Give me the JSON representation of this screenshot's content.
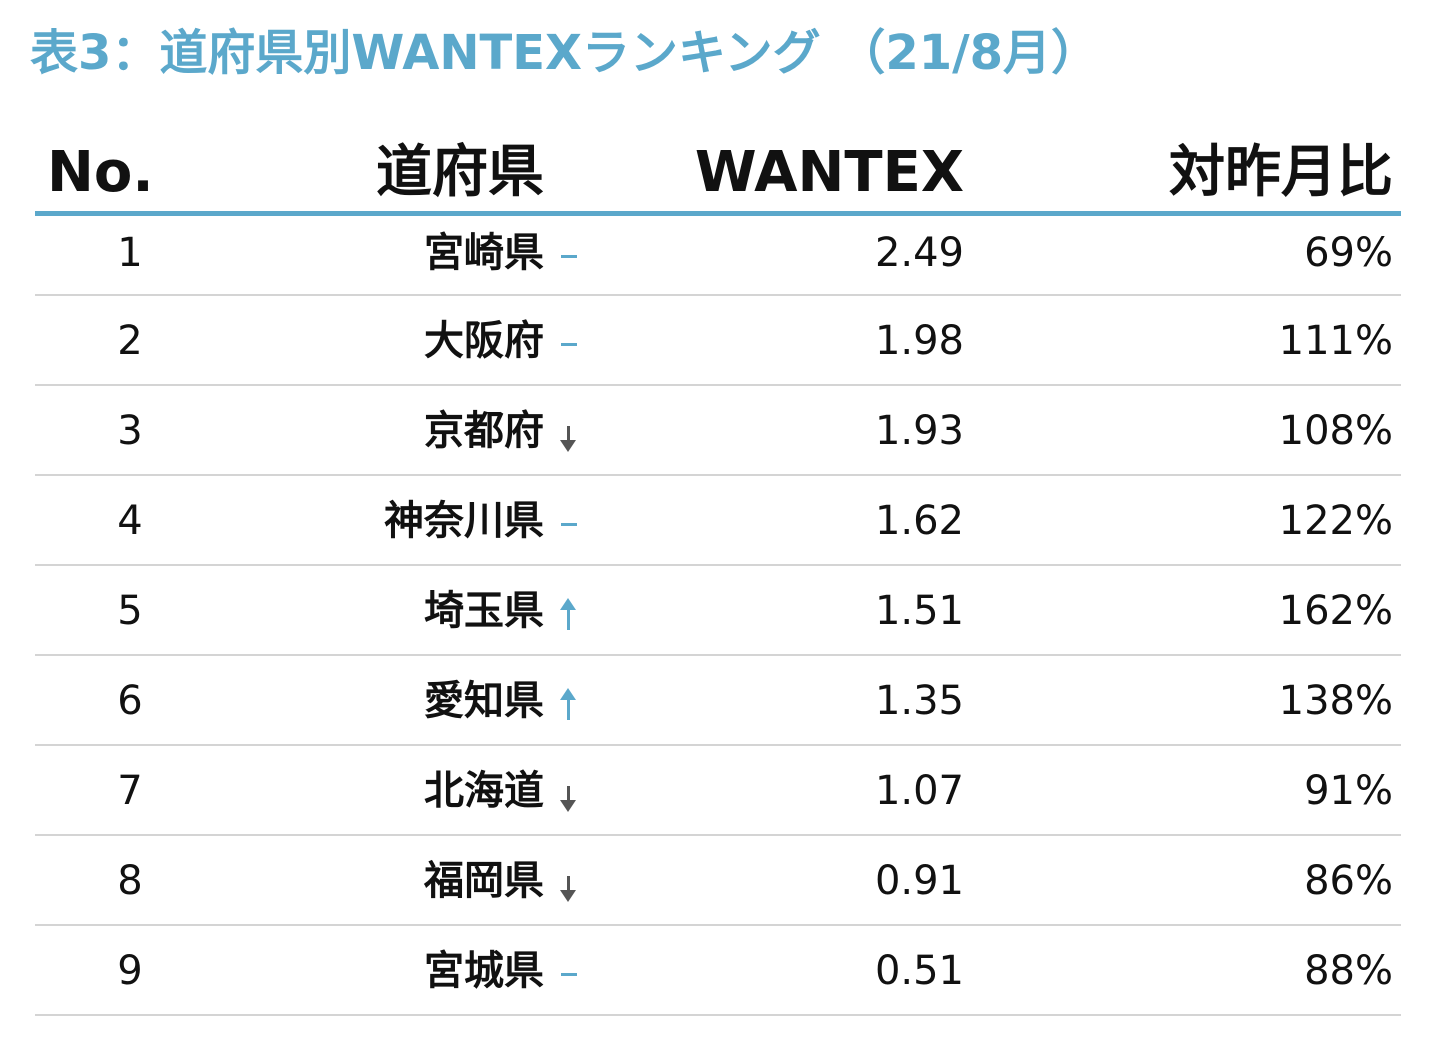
{
  "title": "表3：道府県別WANTEXランキング （21/8月）",
  "colors": {
    "accent": "#5ba8cb",
    "down_arrow": "#555555",
    "divider": "#d4d4d4"
  },
  "table": {
    "headers": {
      "no": "No.",
      "prefecture": "道府県",
      "wantex": "WANTEX",
      "ratio": "対昨月比"
    },
    "rows": [
      {
        "rank": "1",
        "prefecture": "宮崎県",
        "trend": "flat",
        "wantex": "2.49",
        "ratio": "69%"
      },
      {
        "rank": "2",
        "prefecture": "大阪府",
        "trend": "flat",
        "wantex": "1.98",
        "ratio": "111%"
      },
      {
        "rank": "3",
        "prefecture": "京都府",
        "trend": "down",
        "wantex": "1.93",
        "ratio": "108%"
      },
      {
        "rank": "4",
        "prefecture": "神奈川県",
        "trend": "flat",
        "wantex": "1.62",
        "ratio": "122%"
      },
      {
        "rank": "5",
        "prefecture": "埼玉県",
        "trend": "up",
        "wantex": "1.51",
        "ratio": "162%"
      },
      {
        "rank": "6",
        "prefecture": "愛知県",
        "trend": "up",
        "wantex": "1.35",
        "ratio": "138%"
      },
      {
        "rank": "7",
        "prefecture": "北海道",
        "trend": "down",
        "wantex": "1.07",
        "ratio": "91%"
      },
      {
        "rank": "8",
        "prefecture": "福岡県",
        "trend": "down",
        "wantex": "0.91",
        "ratio": "86%"
      },
      {
        "rank": "9",
        "prefecture": "宮城県",
        "trend": "flat",
        "wantex": "0.51",
        "ratio": "88%"
      }
    ]
  }
}
